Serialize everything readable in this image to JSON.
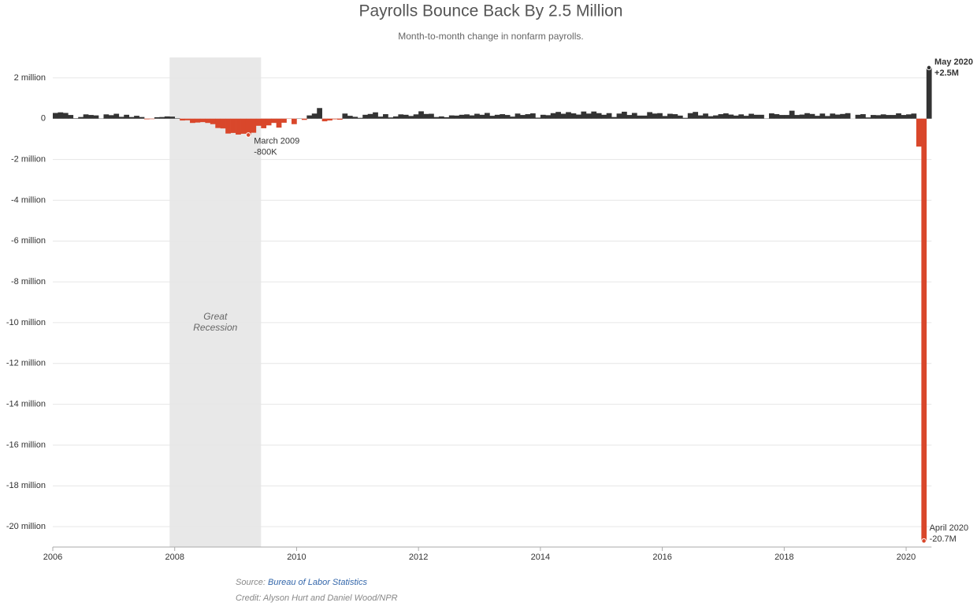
{
  "chart_data": {
    "type": "bar",
    "title": "Payrolls Bounce Back By 2.5 Million",
    "subtitle": "Month-to-month change in nonfarm payrolls.",
    "x": [
      "2006-01",
      "2006-02",
      "2006-03",
      "2006-04",
      "2006-05",
      "2006-06",
      "2006-07",
      "2006-08",
      "2006-09",
      "2006-10",
      "2006-11",
      "2006-12",
      "2007-01",
      "2007-02",
      "2007-03",
      "2007-04",
      "2007-05",
      "2007-06",
      "2007-07",
      "2007-08",
      "2007-09",
      "2007-10",
      "2007-11",
      "2007-12",
      "2008-01",
      "2008-02",
      "2008-03",
      "2008-04",
      "2008-05",
      "2008-06",
      "2008-07",
      "2008-08",
      "2008-09",
      "2008-10",
      "2008-11",
      "2008-12",
      "2009-01",
      "2009-02",
      "2009-03",
      "2009-04",
      "2009-05",
      "2009-06",
      "2009-07",
      "2009-08",
      "2009-09",
      "2009-10",
      "2009-11",
      "2009-12",
      "2010-01",
      "2010-02",
      "2010-03",
      "2010-04",
      "2010-05",
      "2010-06",
      "2010-07",
      "2010-08",
      "2010-09",
      "2010-10",
      "2010-11",
      "2010-12",
      "2011-01",
      "2011-02",
      "2011-03",
      "2011-04",
      "2011-05",
      "2011-06",
      "2011-07",
      "2011-08",
      "2011-09",
      "2011-10",
      "2011-11",
      "2011-12",
      "2012-01",
      "2012-02",
      "2012-03",
      "2012-04",
      "2012-05",
      "2012-06",
      "2012-07",
      "2012-08",
      "2012-09",
      "2012-10",
      "2012-11",
      "2012-12",
      "2013-01",
      "2013-02",
      "2013-03",
      "2013-04",
      "2013-05",
      "2013-06",
      "2013-07",
      "2013-08",
      "2013-09",
      "2013-10",
      "2013-11",
      "2013-12",
      "2014-01",
      "2014-02",
      "2014-03",
      "2014-04",
      "2014-05",
      "2014-06",
      "2014-07",
      "2014-08",
      "2014-09",
      "2014-10",
      "2014-11",
      "2014-12",
      "2015-01",
      "2015-02",
      "2015-03",
      "2015-04",
      "2015-05",
      "2015-06",
      "2015-07",
      "2015-08",
      "2015-09",
      "2015-10",
      "2015-11",
      "2015-12",
      "2016-01",
      "2016-02",
      "2016-03",
      "2016-04",
      "2016-05",
      "2016-06",
      "2016-07",
      "2016-08",
      "2016-09",
      "2016-10",
      "2016-11",
      "2016-12",
      "2017-01",
      "2017-02",
      "2017-03",
      "2017-04",
      "2017-05",
      "2017-06",
      "2017-07",
      "2017-08",
      "2017-09",
      "2017-10",
      "2017-11",
      "2017-12",
      "2018-01",
      "2018-02",
      "2018-03",
      "2018-04",
      "2018-05",
      "2018-06",
      "2018-07",
      "2018-08",
      "2018-09",
      "2018-10",
      "2018-11",
      "2018-12",
      "2019-01",
      "2019-02",
      "2019-03",
      "2019-04",
      "2019-05",
      "2019-06",
      "2019-07",
      "2019-08",
      "2019-09",
      "2019-10",
      "2019-11",
      "2019-12",
      "2020-01",
      "2020-02",
      "2020-03",
      "2020-04",
      "2020-05"
    ],
    "values": [
      0.28,
      0.31,
      0.28,
      0.18,
      0.02,
      0.08,
      0.21,
      0.18,
      0.16,
      0.01,
      0.21,
      0.17,
      0.24,
      0.09,
      0.19,
      0.08,
      0.14,
      0.08,
      -0.03,
      -0.02,
      0.07,
      0.08,
      0.11,
      0.1,
      0.02,
      -0.09,
      -0.08,
      -0.21,
      -0.19,
      -0.17,
      -0.21,
      -0.27,
      -0.46,
      -0.48,
      -0.73,
      -0.7,
      -0.78,
      -0.74,
      -0.8,
      -0.69,
      -0.35,
      -0.47,
      -0.33,
      -0.21,
      -0.44,
      -0.2,
      -0.01,
      -0.27,
      0.01,
      -0.06,
      0.16,
      0.25,
      0.52,
      -0.13,
      -0.09,
      -0.03,
      -0.05,
      0.25,
      0.14,
      0.09,
      0.04,
      0.19,
      0.23,
      0.31,
      0.1,
      0.22,
      0.06,
      0.11,
      0.21,
      0.19,
      0.13,
      0.21,
      0.36,
      0.23,
      0.24,
      0.08,
      0.11,
      0.07,
      0.16,
      0.15,
      0.19,
      0.21,
      0.16,
      0.24,
      0.19,
      0.28,
      0.14,
      0.19,
      0.22,
      0.18,
      0.1,
      0.25,
      0.18,
      0.22,
      0.26,
      0.05,
      0.19,
      0.17,
      0.27,
      0.33,
      0.24,
      0.32,
      0.26,
      0.2,
      0.35,
      0.25,
      0.35,
      0.27,
      0.19,
      0.27,
      0.08,
      0.25,
      0.34,
      0.18,
      0.28,
      0.15,
      0.15,
      0.32,
      0.25,
      0.27,
      0.13,
      0.24,
      0.22,
      0.15,
      0.04,
      0.27,
      0.33,
      0.16,
      0.25,
      0.12,
      0.16,
      0.22,
      0.26,
      0.2,
      0.15,
      0.21,
      0.14,
      0.24,
      0.19,
      0.19,
      0.01,
      0.26,
      0.22,
      0.18,
      0.18,
      0.39,
      0.18,
      0.2,
      0.27,
      0.23,
      0.14,
      0.25,
      0.13,
      0.25,
      0.2,
      0.23,
      0.27,
      0.0,
      0.19,
      0.22,
      0.06,
      0.18,
      0.17,
      0.21,
      0.18,
      0.18,
      0.26,
      0.18,
      0.21,
      0.25,
      -1.37,
      -20.7,
      2.5
    ],
    "colors": {
      "positive": "#333333",
      "negative": "#d9472b"
    },
    "xlim": [
      "2006-01",
      "2020-06"
    ],
    "xticks": [
      "2006",
      "2008",
      "2010",
      "2012",
      "2014",
      "2016",
      "2018",
      "2020"
    ],
    "ylim": [
      -21,
      3
    ],
    "yticks": [
      {
        "value": 2,
        "label": "2 million"
      },
      0,
      {
        "value": -2,
        "label": "-2 million"
      },
      {
        "value": -4,
        "label": "-4 million"
      },
      {
        "value": -6,
        "label": "-6 million"
      },
      {
        "value": -8,
        "label": "-8 million"
      },
      {
        "value": -10,
        "label": "-10 million"
      },
      {
        "value": -12,
        "label": "-12 million"
      },
      {
        "value": -14,
        "label": "-14 million"
      },
      {
        "value": -16,
        "label": "-16 million"
      },
      {
        "value": -18,
        "label": "-18 million"
      },
      {
        "value": -20,
        "label": "-20 million"
      }
    ],
    "grid": true,
    "shading": {
      "label": [
        "Great",
        "Recession"
      ],
      "start": "2007-12",
      "end": "2009-06",
      "color": "#e8e8e8"
    },
    "annotations": [
      {
        "x": "2009-03",
        "title": "March 2009",
        "value_label": "-800K"
      },
      {
        "x": "2020-05",
        "title": "May 2020",
        "value_label": "+2.5M"
      },
      {
        "x": "2020-04",
        "title": "April 2020",
        "value_label": "-20.7M"
      }
    ],
    "source_label": "Source:",
    "source": "Bureau of Labor Statistics",
    "credit": "Credit: Alyson Hurt and Daniel Wood/NPR"
  }
}
